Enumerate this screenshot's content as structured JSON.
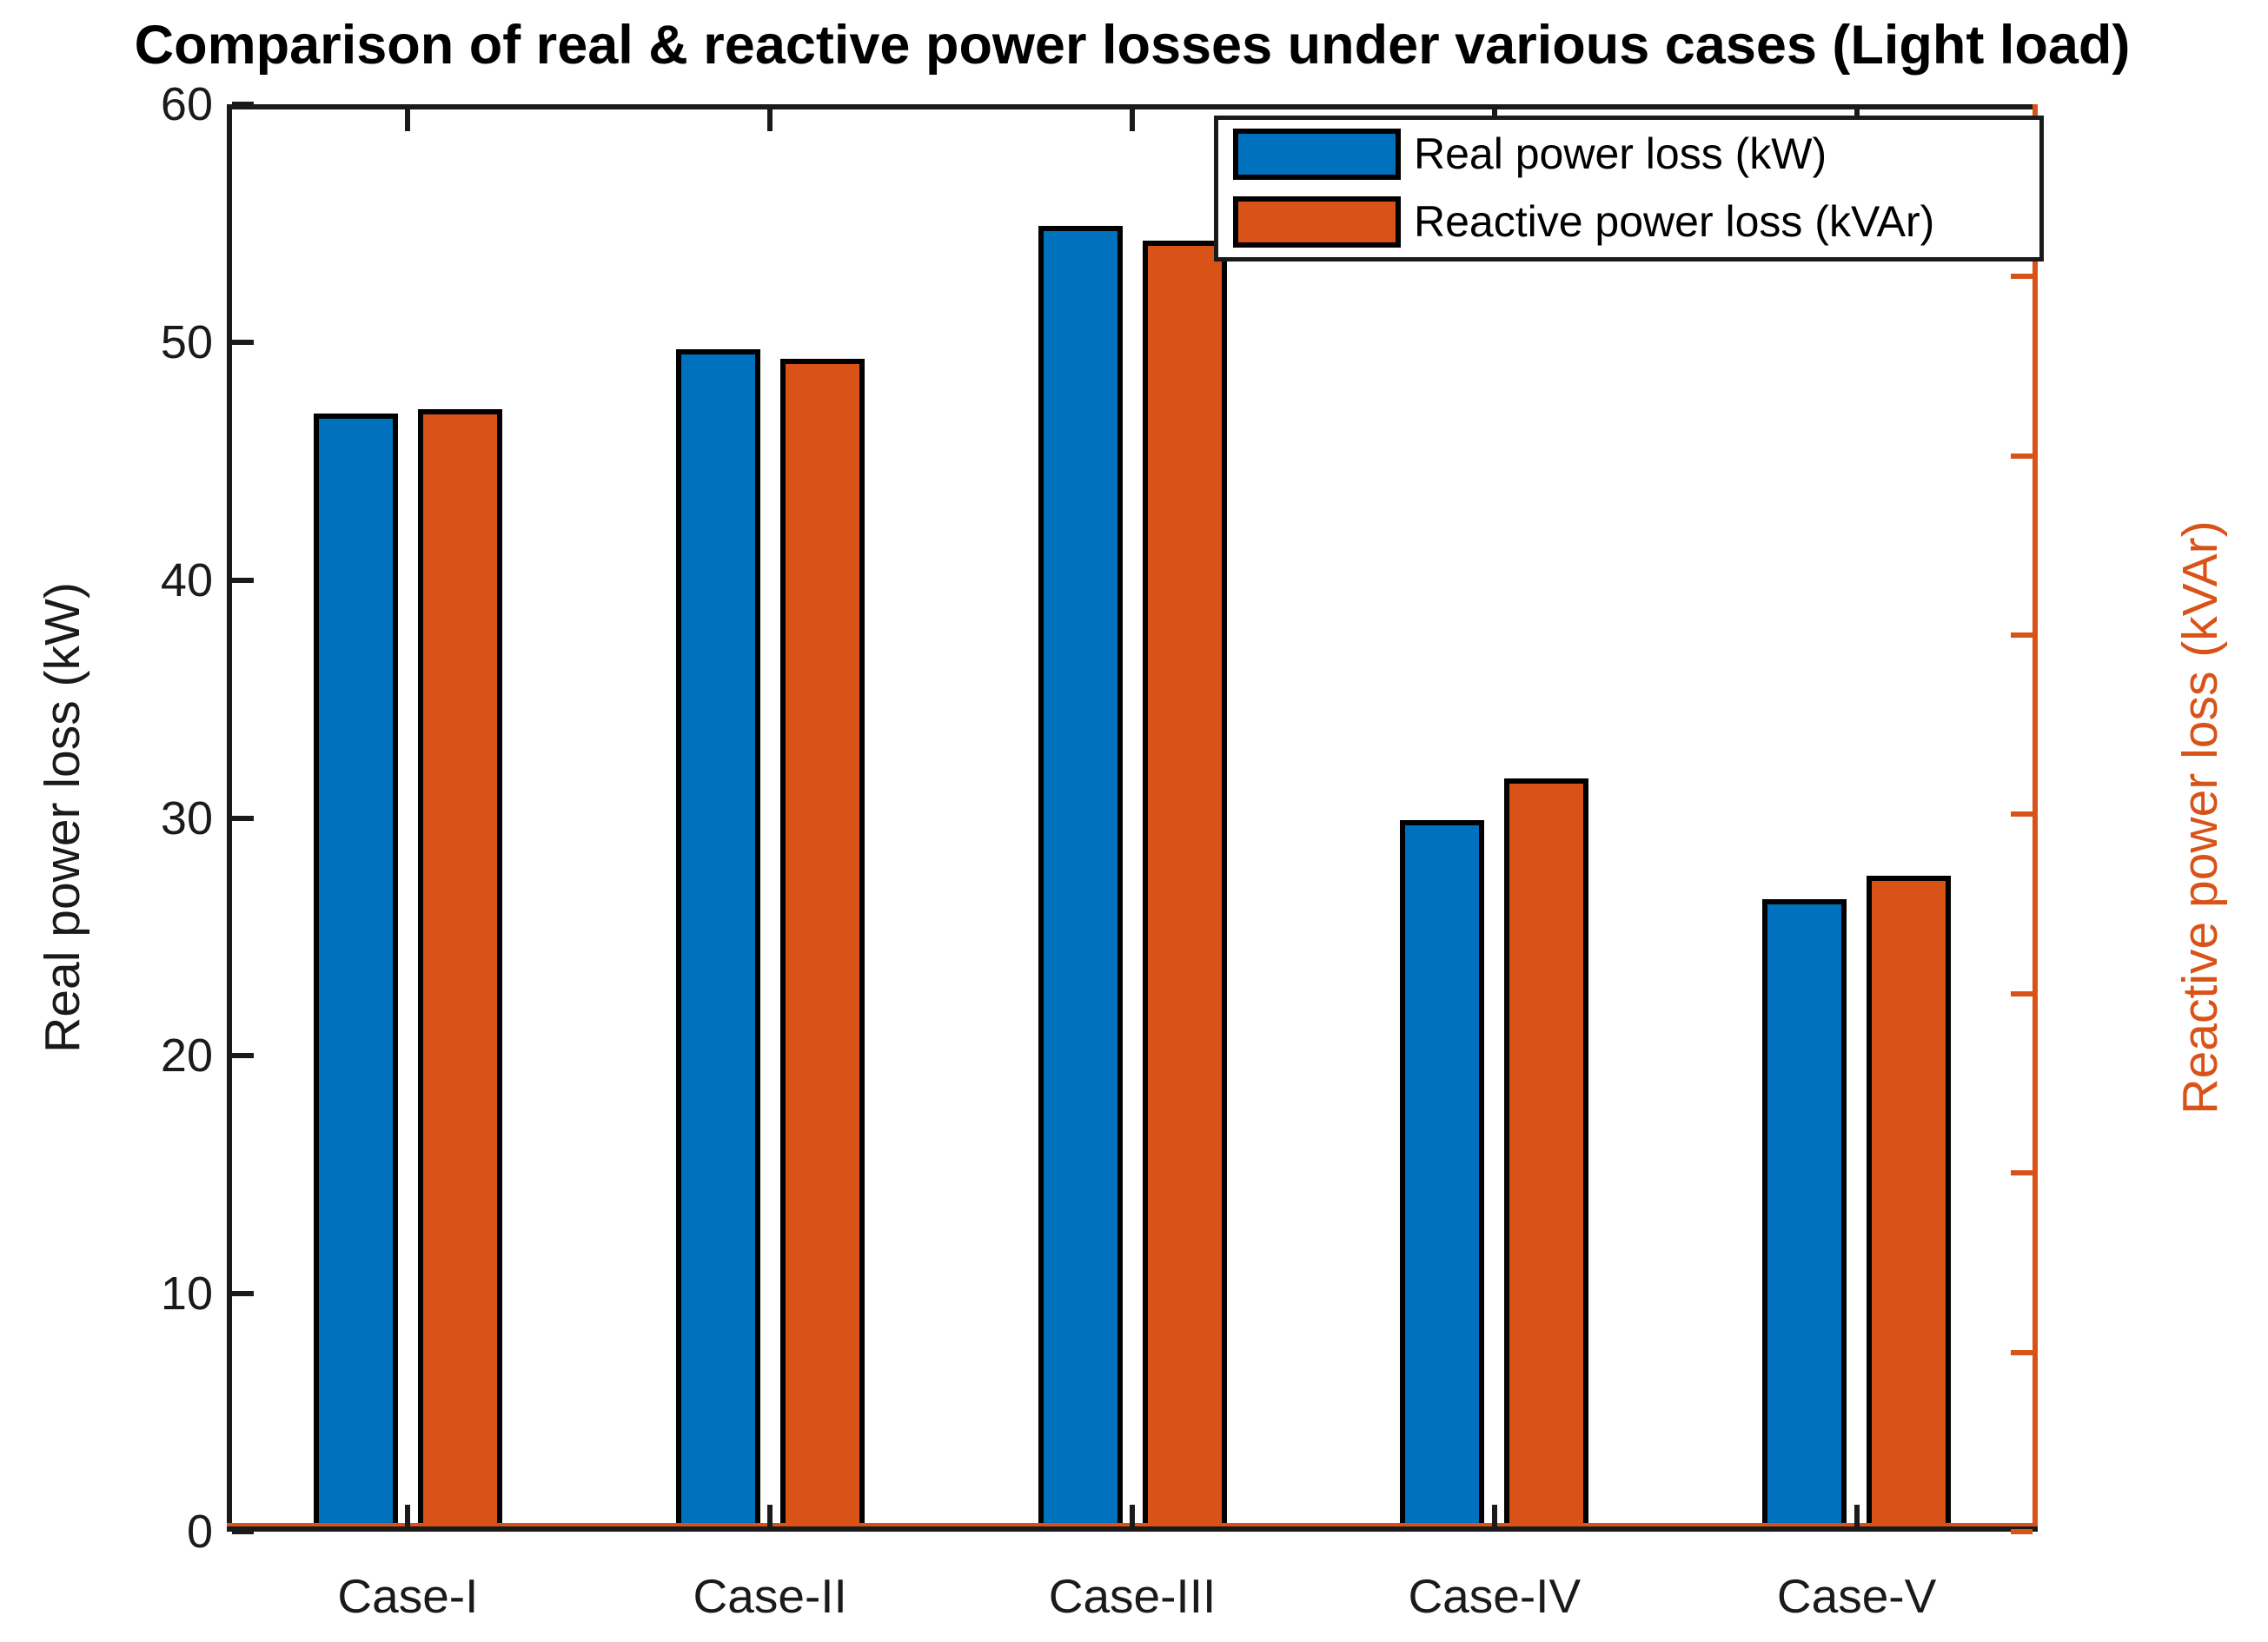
{
  "chart_data": {
    "type": "bar",
    "title": "Comparison of real & reactive power losses under various cases (Light load)",
    "categories": [
      "Case-I",
      "Case-II",
      "Case-III",
      "Case-IV",
      "Case-V"
    ],
    "series": [
      {
        "name": "Real power loss (kW)",
        "axis": "left",
        "color": "#0072BD",
        "values": [
          47.0,
          49.7,
          54.9,
          29.9,
          26.6
        ]
      },
      {
        "name": "Reactive power loss (kVAr)",
        "axis": "right",
        "color": "#D95319",
        "values": [
          31.3,
          32.7,
          36.0,
          21.0,
          18.3
        ]
      }
    ],
    "left_axis": {
      "label": "Real power loss (kW)",
      "ticks": [
        0,
        10,
        20,
        30,
        40,
        50,
        60
      ],
      "range": [
        0,
        60
      ],
      "color": "#1a1a1a"
    },
    "right_axis": {
      "label": "Reactive power loss (kVAr)",
      "ticks": [
        0,
        5,
        10,
        15,
        20,
        25,
        30,
        35
      ],
      "range": [
        0,
        39.8
      ],
      "color": "#D95319"
    },
    "legend": {
      "position": "top-right",
      "entries": [
        "Real power loss (kW)",
        "Reactive power loss (kVAr)"
      ]
    },
    "grid": false
  }
}
